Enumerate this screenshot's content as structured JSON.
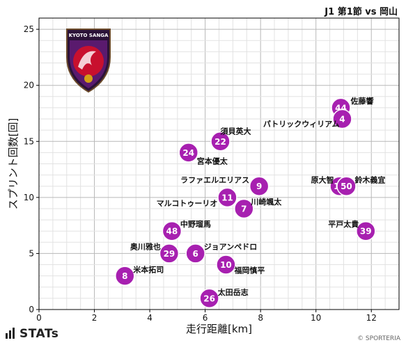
{
  "header": {
    "title": "J1 第1節 vs 岡山"
  },
  "footer": {
    "brand": "STATs",
    "copyright": "© SPORTERIA"
  },
  "logo": {
    "text": "KYOTO SANGA",
    "icon": "kyoto-sanga-crest"
  },
  "colors": {
    "point": "#a720b0",
    "point_stroke": "#ffffff",
    "grid": "#cccccc",
    "axis": "#000000"
  },
  "chart_data": {
    "type": "scatter",
    "title": "",
    "xlabel": "走行距離[km]",
    "ylabel": "スプリント回数[回]",
    "xlim": [
      0,
      13
    ],
    "ylim": [
      0,
      26
    ],
    "xticks": [
      0,
      2,
      4,
      6,
      8,
      10,
      12
    ],
    "yticks": [
      0,
      5,
      10,
      15,
      20,
      25
    ],
    "grid": true,
    "points": [
      {
        "number": "44",
        "name": "佐藤響",
        "x": 10.9,
        "y": 18
      },
      {
        "number": "4",
        "name": "パトリックウィリアム",
        "x": 10.95,
        "y": 17
      },
      {
        "number": "22",
        "name": "須貝英大",
        "x": 6.55,
        "y": 15
      },
      {
        "number": "24",
        "name": "宮本優太",
        "x": 5.4,
        "y": 14
      },
      {
        "number": "9",
        "name": "ラファエルエリアス",
        "x": 7.95,
        "y": 11
      },
      {
        "number": "14",
        "name": "原大智",
        "x": 10.85,
        "y": 11
      },
      {
        "number": "50",
        "name": "鈴木義宜",
        "x": 11.1,
        "y": 11
      },
      {
        "number": "11",
        "name": "マルコトゥーリオ",
        "x": 6.8,
        "y": 10
      },
      {
        "number": "7",
        "name": "川崎颯太",
        "x": 7.4,
        "y": 9
      },
      {
        "number": "48",
        "name": "中野瑠馬",
        "x": 4.8,
        "y": 7
      },
      {
        "number": "39",
        "name": "平戸太貴",
        "x": 11.8,
        "y": 7
      },
      {
        "number": "29",
        "name": "奥川雅也",
        "x": 4.7,
        "y": 5
      },
      {
        "number": "6",
        "name": "ジョアンペドロ",
        "x": 5.65,
        "y": 5
      },
      {
        "number": "10",
        "name": "福岡慎平",
        "x": 6.75,
        "y": 4
      },
      {
        "number": "8",
        "name": "米本拓司",
        "x": 3.1,
        "y": 3
      },
      {
        "number": "26",
        "name": "太田岳志",
        "x": 6.15,
        "y": 1
      }
    ]
  }
}
